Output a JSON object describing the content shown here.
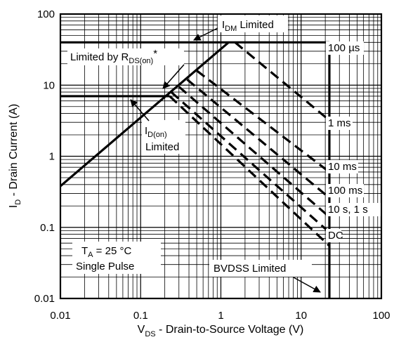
{
  "chart_data": {
    "type": "line",
    "x_scale": "log",
    "y_scale": "log",
    "xlim": [
      0.01,
      100
    ],
    "ylim": [
      0.01,
      100
    ],
    "grid": true,
    "x_ticks": [
      "0.01",
      "0.1",
      "1",
      "10",
      "100"
    ],
    "y_ticks": [
      "100",
      "10",
      "1",
      "0.1",
      "0.01"
    ],
    "xlabel": {
      "main": "V",
      "sub": "DS",
      "rest": " - Drain-to-Source Voltage (V)"
    },
    "ylabel": {
      "main": "I",
      "sub": "D",
      "rest": " - Drain Current (A)"
    },
    "series": [
      {
        "name": "100 µs",
        "points": [
          [
            1.5,
            40
          ],
          [
            22.5,
            3.2
          ]
        ]
      },
      {
        "name": "1 ms",
        "points": [
          [
            0.5,
            16
          ],
          [
            22.5,
            0.6
          ]
        ]
      },
      {
        "name": "10 ms",
        "points": [
          [
            0.38,
            12
          ],
          [
            22.5,
            0.26
          ]
        ]
      },
      {
        "name": "100 ms",
        "points": [
          [
            0.3,
            9.5
          ],
          [
            22.5,
            0.14
          ]
        ]
      },
      {
        "name": "10 s, 1 s",
        "points": [
          [
            0.24,
            8
          ],
          [
            22.5,
            0.085
          ]
        ]
      },
      {
        "name": "DC",
        "points": [
          [
            0.23,
            7
          ],
          [
            22.5,
            0.055
          ]
        ]
      }
    ],
    "limits": {
      "rds_on_line": [
        [
          0.01,
          0.38
        ],
        [
          1.25,
          40
        ]
      ],
      "idm_limit": [
        [
          0.01,
          40
        ],
        [
          22.5,
          40
        ]
      ],
      "id_on_limit": [
        [
          0.01,
          7
        ],
        [
          0.23,
          7
        ]
      ],
      "bvdss_limit": [
        [
          22.5,
          40
        ],
        [
          22.5,
          0.01
        ]
      ]
    },
    "annotations": {
      "idm": {
        "main": "I",
        "sub": "DM",
        "rest": " Limited"
      },
      "rds": {
        "main": "Limited by R",
        "sub": "DS(on)",
        "rest": "*"
      },
      "idon": {
        "main": "I",
        "sub": "D(on)",
        "line2": "Limited"
      },
      "ta": {
        "main": "T",
        "sub": "A",
        "rest": " = 25 °C",
        "line2": "Single Pulse"
      },
      "bvdss": "BVDSS Limited"
    }
  }
}
